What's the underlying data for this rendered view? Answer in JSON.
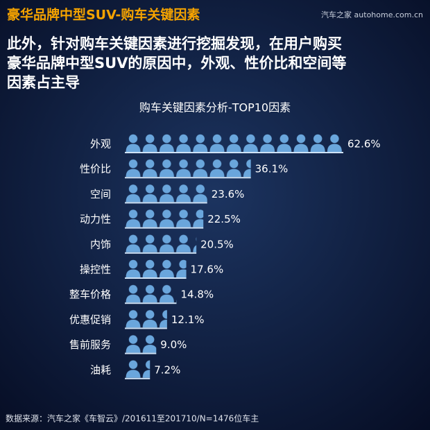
{
  "header": {
    "title": "豪华品牌中型SUV-购车关键因素",
    "watermark": "汽车之家 autohome.com.cn"
  },
  "subtitle": [
    "此外，针对购车关键因素进行挖掘发现，在用户购买",
    "豪华品牌中型SUV的原因中，外观、性价比和空间等",
    "因素占主导"
  ],
  "chart_data": {
    "type": "bar",
    "title": "购车关键因素分析-TOP10因素",
    "categories": [
      "外观",
      "性价比",
      "空间",
      "动力性",
      "内饰",
      "操控性",
      "整车价格",
      "优惠促销",
      "售前服务",
      "油耗"
    ],
    "values": [
      62.6,
      36.1,
      23.6,
      22.5,
      20.5,
      17.6,
      14.8,
      12.1,
      9.0,
      7.2
    ],
    "value_labels": [
      "62.6%",
      "36.1%",
      "23.6%",
      "22.5%",
      "20.5%",
      "17.6%",
      "14.8%",
      "12.1%",
      "9.0%",
      "7.2%"
    ],
    "color": "#6aa6dc"
  },
  "source": "数据来源：汽车之家《车智云》/201611至201710/N=1476位车主"
}
